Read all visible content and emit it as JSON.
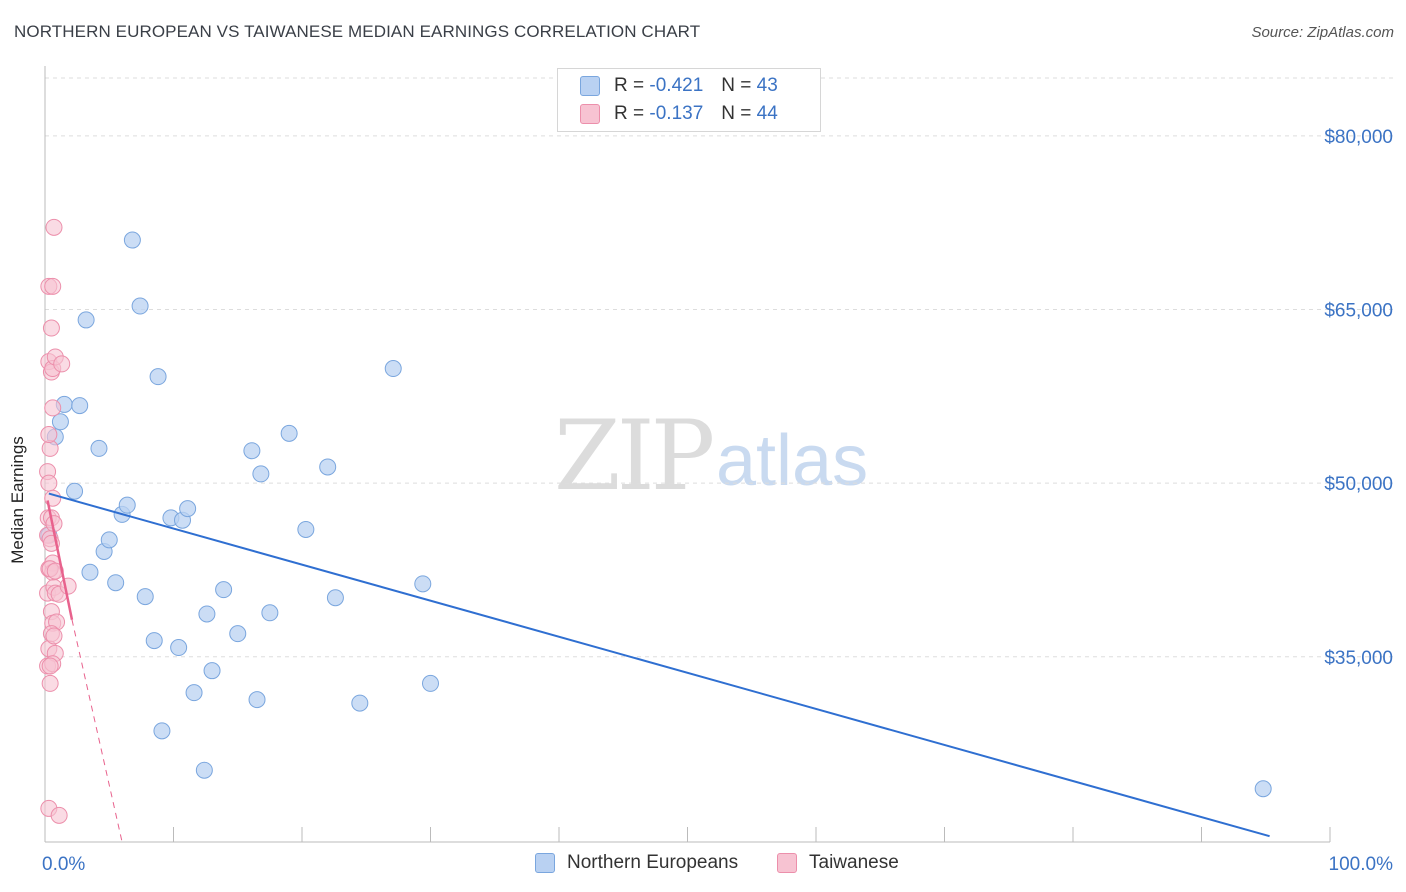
{
  "title": "NORTHERN EUROPEAN VS TAIWANESE MEDIAN EARNINGS CORRELATION CHART",
  "source": "Source: ZipAtlas.com",
  "watermark": {
    "zip": "ZIP",
    "atlas": "atlas"
  },
  "legend": {
    "rows": [
      {
        "r_label": "R =",
        "r_value": "-0.421",
        "n_label": "N =",
        "n_value": "43"
      },
      {
        "r_label": "R =",
        "r_value": "-0.137",
        "n_label": "N =",
        "n_value": "44"
      }
    ]
  },
  "bottom_legend": {
    "series1": "Northern Europeans",
    "series2": "Taiwanese"
  },
  "colors": {
    "blue_fill": "#b9d1f2",
    "blue_stroke": "#7aa6de",
    "blue_line": "#2f6fd1",
    "pink_fill": "#f7c3d2",
    "pink_stroke": "#ec8fab",
    "pink_line": "#e8628d",
    "tick_label": "#3b73c4",
    "grid": "#dddddd"
  },
  "chart_data": {
    "type": "scatter",
    "title": "NORTHERN EUROPEAN VS TAIWANESE MEDIAN EARNINGS CORRELATION CHART",
    "xlabel": "",
    "ylabel": "Median Earnings",
    "xlim": [
      0,
      100
    ],
    "ylim": [
      19000,
      85000
    ],
    "x_tick_labels": [
      "0.0%",
      "100.0%"
    ],
    "y_ticks": [
      35000,
      50000,
      65000,
      80000
    ],
    "y_tick_labels": [
      "$35,000",
      "$50,000",
      "$65,000",
      "$80,000"
    ],
    "series": [
      {
        "name": "Northern Europeans",
        "r": -0.421,
        "n": 43,
        "trend": {
          "x": [
            0.3,
            95.3
          ],
          "y": [
            49100,
            19500
          ]
        },
        "points": [
          [
            0.3,
            45500
          ],
          [
            0.8,
            54000
          ],
          [
            1.2,
            55300
          ],
          [
            1.5,
            56800
          ],
          [
            2.3,
            49300
          ],
          [
            2.7,
            56700
          ],
          [
            3.2,
            64100
          ],
          [
            3.5,
            42300
          ],
          [
            4.2,
            53000
          ],
          [
            4.6,
            44100
          ],
          [
            5.0,
            45100
          ],
          [
            5.5,
            41400
          ],
          [
            6.0,
            47300
          ],
          [
            6.4,
            48100
          ],
          [
            6.8,
            71000
          ],
          [
            7.4,
            65300
          ],
          [
            7.8,
            40200
          ],
          [
            8.5,
            36400
          ],
          [
            8.8,
            59200
          ],
          [
            9.1,
            28600
          ],
          [
            9.8,
            47000
          ],
          [
            10.4,
            35800
          ],
          [
            10.7,
            46800
          ],
          [
            11.1,
            47800
          ],
          [
            11.6,
            31900
          ],
          [
            12.4,
            25200
          ],
          [
            12.6,
            38700
          ],
          [
            13.0,
            33800
          ],
          [
            13.9,
            40800
          ],
          [
            15.0,
            37000
          ],
          [
            16.1,
            52800
          ],
          [
            16.5,
            31300
          ],
          [
            16.8,
            50800
          ],
          [
            17.5,
            38800
          ],
          [
            19.0,
            54300
          ],
          [
            20.3,
            46000
          ],
          [
            22.0,
            51400
          ],
          [
            22.6,
            40100
          ],
          [
            24.5,
            31000
          ],
          [
            27.1,
            59900
          ],
          [
            29.4,
            41300
          ],
          [
            30.0,
            32700
          ],
          [
            94.8,
            23600
          ]
        ]
      },
      {
        "name": "Taiwanese",
        "r": -0.137,
        "n": 44,
        "trend": {
          "x": [
            0.2,
            2.1
          ],
          "y": [
            48500,
            38200
          ]
        },
        "trend_extended": {
          "x": [
            2.1,
            6.0
          ],
          "y": [
            38200,
            19000
          ]
        },
        "points": [
          [
            0.2,
            45500
          ],
          [
            0.25,
            47000
          ],
          [
            0.2,
            51000
          ],
          [
            0.3,
            42600
          ],
          [
            0.2,
            40500
          ],
          [
            0.3,
            35700
          ],
          [
            0.2,
            34200
          ],
          [
            0.4,
            32700
          ],
          [
            0.3,
            60500
          ],
          [
            0.5,
            63400
          ],
          [
            0.3,
            67000
          ],
          [
            0.6,
            67000
          ],
          [
            0.7,
            72100
          ],
          [
            0.5,
            59600
          ],
          [
            0.6,
            59900
          ],
          [
            0.8,
            60900
          ],
          [
            1.3,
            60300
          ],
          [
            0.6,
            56500
          ],
          [
            0.4,
            53000
          ],
          [
            0.3,
            54200
          ],
          [
            0.3,
            50000
          ],
          [
            0.6,
            48700
          ],
          [
            0.5,
            47000
          ],
          [
            0.7,
            46500
          ],
          [
            0.4,
            45200
          ],
          [
            0.5,
            44800
          ],
          [
            0.6,
            43100
          ],
          [
            0.6,
            42300
          ],
          [
            0.4,
            42600
          ],
          [
            0.8,
            42400
          ],
          [
            0.7,
            41000
          ],
          [
            0.8,
            40500
          ],
          [
            1.1,
            40400
          ],
          [
            1.8,
            41100
          ],
          [
            0.5,
            38900
          ],
          [
            0.6,
            37900
          ],
          [
            0.9,
            38000
          ],
          [
            0.5,
            37000
          ],
          [
            0.7,
            36800
          ],
          [
            0.8,
            35300
          ],
          [
            0.6,
            34400
          ],
          [
            0.4,
            34200
          ],
          [
            0.3,
            21900
          ],
          [
            1.1,
            21300
          ]
        ]
      }
    ]
  }
}
